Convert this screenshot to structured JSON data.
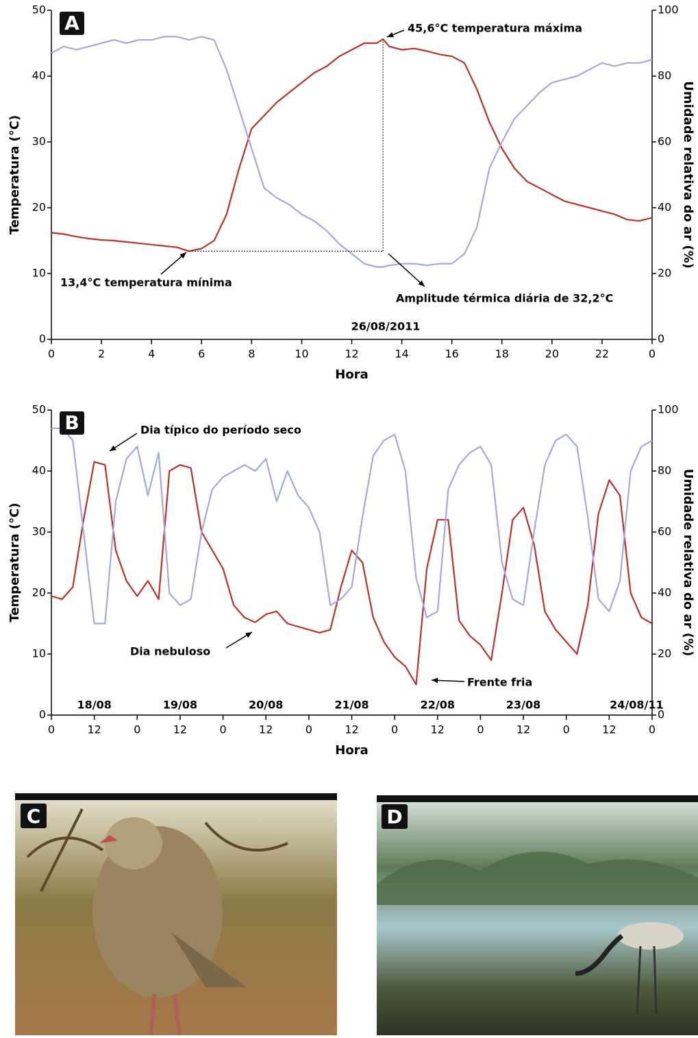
{
  "chart_data": [
    {
      "type": "line",
      "panel_label": "A",
      "x_label": "Hora",
      "y_label": "Temperatura (°C)",
      "y2_label": "Umidade relativa do ar (%)",
      "xlim": [
        0,
        24
      ],
      "xticks": [
        0,
        2,
        4,
        6,
        8,
        10,
        12,
        14,
        16,
        18,
        20,
        22,
        {
          "value": 24,
          "label": "0"
        }
      ],
      "ylim": [
        0,
        50
      ],
      "yticks": [
        0,
        10,
        20,
        30,
        40,
        50
      ],
      "y2lim": [
        0,
        100
      ],
      "y2ticks": [
        0,
        20,
        40,
        60,
        80,
        100
      ],
      "grid": false,
      "x": [
        0,
        0.5,
        1,
        1.5,
        2,
        2.5,
        3,
        3.5,
        4,
        4.5,
        5,
        5.5,
        6,
        6.5,
        7,
        7.5,
        8,
        8.5,
        9,
        9.5,
        10,
        10.5,
        11,
        11.5,
        12,
        12.5,
        13,
        13.25,
        13.5,
        14,
        14.5,
        15,
        15.5,
        16,
        16.5,
        17,
        17.5,
        18,
        18.5,
        19,
        19.5,
        20,
        20.5,
        21,
        21.5,
        22,
        22.5,
        23,
        23.5,
        24
      ],
      "series": [
        {
          "color": "#b8312b",
          "values": [
            16.2,
            16.0,
            15.6,
            15.3,
            15.1,
            15.0,
            14.8,
            14.6,
            14.4,
            14.2,
            14.0,
            13.4,
            13.8,
            15.0,
            19.0,
            26.0,
            32.0,
            34.0,
            36.0,
            37.5,
            39.0,
            40.5,
            41.5,
            43.0,
            44.0,
            45.0,
            45.0,
            45.6,
            44.5,
            44.0,
            44.2,
            43.8,
            43.3,
            43.0,
            42.0,
            38.0,
            33.0,
            29.0,
            26.0,
            24.0,
            23.0,
            22.0,
            21.0,
            20.5,
            20.0,
            19.5,
            19.0,
            18.2,
            18.0,
            18.5
          ]
        },
        {
          "color": "#a3a9d8",
          "axis": "y2",
          "values": [
            87,
            89,
            88,
            89,
            90,
            91,
            90,
            91,
            91,
            92,
            92,
            91,
            92,
            91,
            82,
            70,
            58,
            46,
            43,
            41,
            38,
            36,
            33,
            29,
            26,
            23,
            22,
            22,
            22.5,
            23,
            23,
            22.5,
            23,
            23,
            26,
            34,
            52,
            60,
            67,
            71,
            75,
            78,
            79,
            80,
            82,
            84,
            83,
            84,
            84,
            85
          ]
        }
      ],
      "annotations": [
        "45,6°C temperatura máxima",
        "13,4°C temperatura mínima",
        "Amplitude térmica diária de 32,2°C",
        "26/08/2011"
      ]
    },
    {
      "type": "line",
      "panel_label": "B",
      "x_label": "Hora",
      "y_label": "Temperatura (°C)",
      "y2_label": "Umidade relativa do ar (%)",
      "xlim": [
        0,
        168
      ],
      "xticks": [
        0,
        12,
        {
          "value": 24,
          "label": "0"
        },
        {
          "value": 36,
          "label": "12"
        },
        {
          "value": 48,
          "label": "0"
        },
        {
          "value": 60,
          "label": "12"
        },
        {
          "value": 72,
          "label": "0"
        },
        {
          "value": 84,
          "label": "12"
        },
        {
          "value": 96,
          "label": "0"
        },
        {
          "value": 108,
          "label": "12"
        },
        {
          "value": 120,
          "label": "0"
        },
        {
          "value": 132,
          "label": "12"
        },
        {
          "value": 144,
          "label": "0"
        },
        {
          "value": 156,
          "label": "12"
        },
        {
          "value": 168,
          "label": "0"
        }
      ],
      "ylim": [
        0,
        50
      ],
      "yticks": [
        0,
        10,
        20,
        30,
        40,
        50
      ],
      "y2lim": [
        0,
        100
      ],
      "y2ticks": [
        0,
        20,
        40,
        60,
        80,
        100
      ],
      "grid": false,
      "x": [
        0,
        3,
        6,
        9,
        12,
        15,
        18,
        21,
        24,
        27,
        30,
        33,
        36,
        39,
        42,
        45,
        48,
        51,
        54,
        57,
        60,
        63,
        66,
        69,
        72,
        75,
        78,
        81,
        84,
        87,
        90,
        93,
        96,
        99,
        102,
        105,
        108,
        111,
        114,
        117,
        120,
        123,
        126,
        129,
        132,
        135,
        138,
        141,
        144,
        147,
        150,
        153,
        156,
        159,
        162,
        165,
        168
      ],
      "series": [
        {
          "color": "#b8312b",
          "values": [
            19.5,
            19,
            21,
            32,
            41.5,
            41,
            27,
            22,
            19.5,
            22,
            19,
            40,
            41,
            40.5,
            30,
            27,
            24,
            18,
            16,
            15.2,
            16.5,
            17,
            15,
            14.5,
            14,
            13.5,
            14,
            21,
            27,
            25,
            16,
            12,
            9.5,
            8,
            5,
            24,
            32,
            32,
            15.5,
            13,
            11.5,
            9,
            20,
            32,
            34,
            28,
            17,
            14,
            12,
            10,
            18,
            33,
            38.5,
            36,
            20,
            16,
            15
          ]
        },
        {
          "color": "#a3a9d8",
          "axis": "y2",
          "values": [
            94,
            94,
            90,
            60,
            30,
            30,
            70,
            84,
            88,
            72,
            86,
            40,
            36,
            38,
            60,
            74,
            78,
            80,
            82,
            80,
            84,
            70,
            80,
            72,
            68,
            60,
            36,
            38,
            42,
            65,
            85,
            90,
            92,
            80,
            45,
            32,
            34,
            74,
            82,
            86,
            88,
            82,
            50,
            38,
            36,
            60,
            82,
            90,
            92,
            88,
            65,
            38,
            34,
            44,
            80,
            88,
            90
          ]
        }
      ],
      "day_labels": [
        "18/08",
        "19/08",
        "20/08",
        "21/08",
        "22/08",
        "23/08",
        "24/08/11"
      ],
      "annotations": [
        "Dia típico do período seco",
        "Dia nebuloso",
        "Frente fria"
      ]
    }
  ],
  "photos": [
    {
      "label": "C"
    },
    {
      "label": "D"
    }
  ]
}
